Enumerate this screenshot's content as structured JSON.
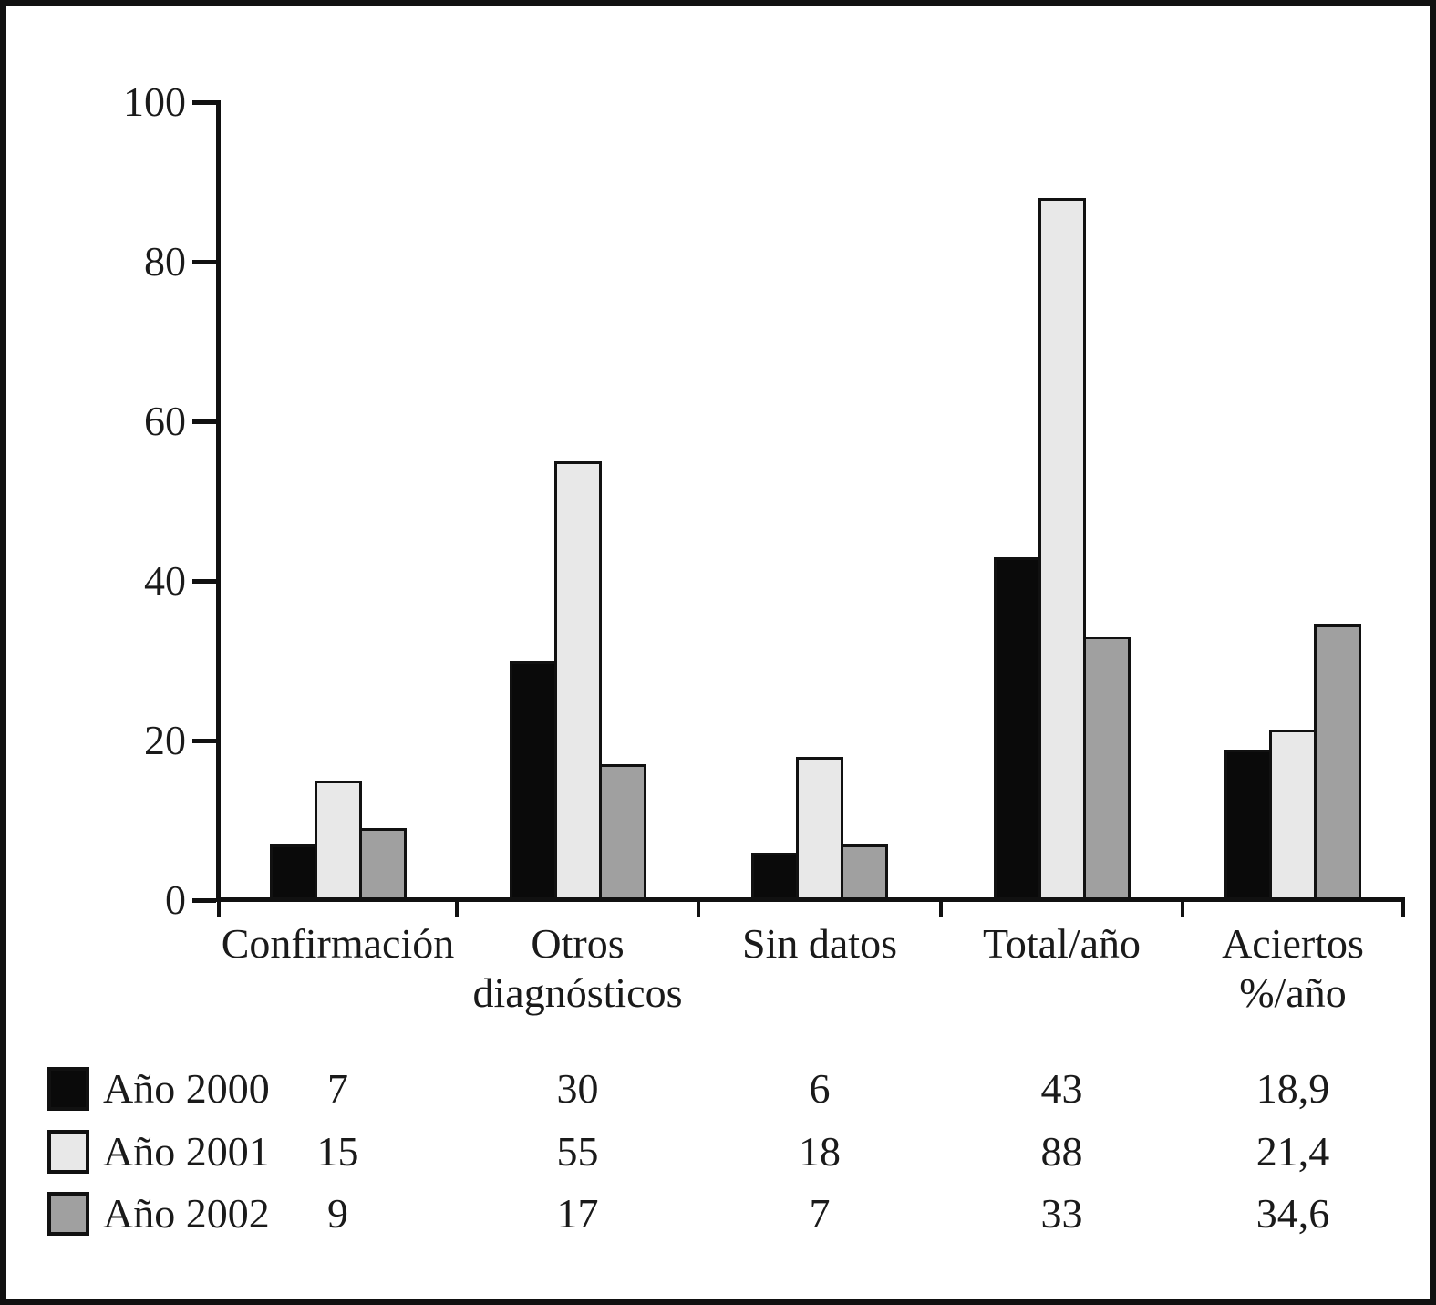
{
  "chart_data": {
    "type": "bar",
    "title": "",
    "categories": [
      "Confirmación",
      "Otros diagnósticos",
      "Sin datos",
      "Total/año",
      "Aciertos %/año"
    ],
    "category_label_lines": [
      [
        "Confirmación"
      ],
      [
        "Otros",
        "diagnósticos"
      ],
      [
        "Sin datos"
      ],
      [
        "Total/año"
      ],
      [
        "Aciertos",
        "%/año"
      ]
    ],
    "series": [
      {
        "name": "Año 2000",
        "color": "#0a0a0a",
        "values": [
          7,
          30,
          6,
          43,
          18.9
        ]
      },
      {
        "name": "Año 2001",
        "color": "#e8e8e8",
        "values": [
          15,
          55,
          18,
          88,
          21.4
        ]
      },
      {
        "name": "Año 2002",
        "color": "#a0a0a0",
        "values": [
          9,
          17,
          7,
          33,
          34.6
        ]
      }
    ],
    "ylim": [
      0,
      100
    ],
    "yticks": [
      "0",
      "20",
      "40",
      "60",
      "80",
      "100"
    ],
    "xlabel": "",
    "ylabel": "",
    "grid": false,
    "legend_position": "bottom-left-table",
    "bar_outline_color": "#111111"
  },
  "legend_table": {
    "rows": [
      {
        "label": "Año 2000",
        "swatch_color": "#0a0a0a",
        "values": [
          "7",
          "30",
          "6",
          "43",
          "18,9"
        ]
      },
      {
        "label": "Año 2001",
        "swatch_color": "#e8e8e8",
        "values": [
          "15",
          "55",
          "18",
          "88",
          "21,4"
        ]
      },
      {
        "label": "Año 2002",
        "swatch_color": "#a0a0a0",
        "values": [
          "9",
          "17",
          "7",
          "33",
          "34,6"
        ]
      }
    ]
  },
  "colors": {
    "background": "#ffffff",
    "frame_border": "#111111",
    "text": "#1a1a1a"
  }
}
